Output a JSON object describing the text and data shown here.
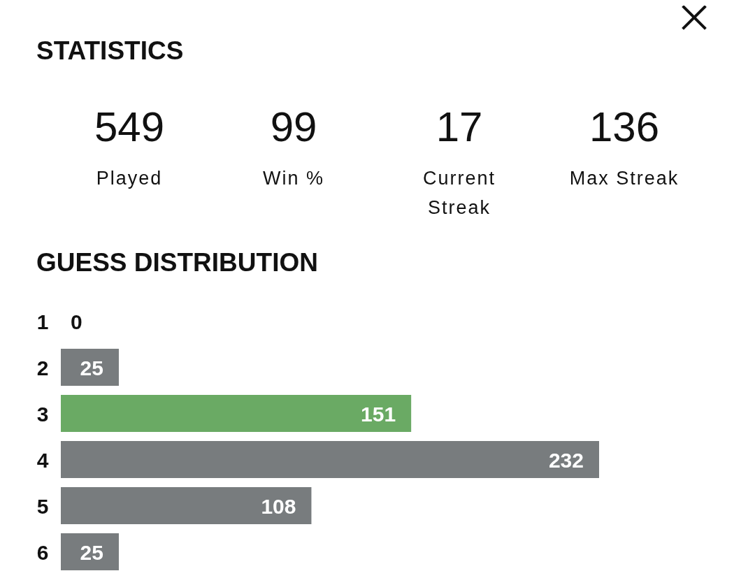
{
  "chart_data": [
    {
      "type": "other",
      "title": "STATISTICS",
      "categories": [
        "Played",
        "Win %",
        "Current Streak",
        "Max Streak"
      ],
      "values": [
        549,
        99,
        17,
        136
      ],
      "data_labels": true
    },
    {
      "type": "bar",
      "title": "GUESS DISTRIBUTION",
      "orientation": "horizontal",
      "categories": [
        "1",
        "2",
        "3",
        "4",
        "5",
        "6"
      ],
      "values": [
        0,
        25,
        151,
        232,
        108,
        25
      ],
      "colors": [
        "#787c7e",
        "#787c7e",
        "#6aaa64",
        "#787c7e",
        "#787c7e",
        "#787c7e"
      ],
      "data_labels": true
    }
  ]
}
